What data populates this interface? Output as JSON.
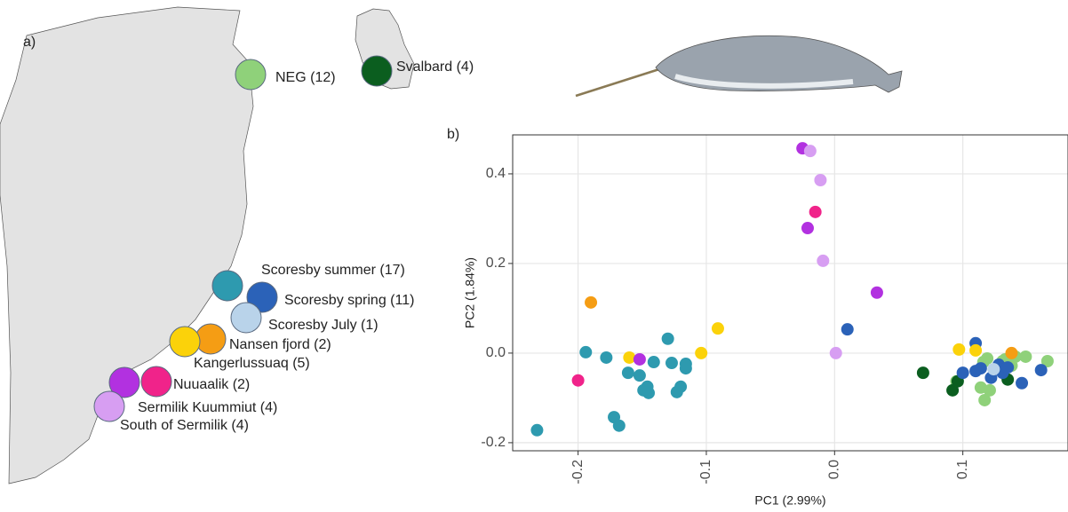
{
  "panels": {
    "a": "a)",
    "b": "b)"
  },
  "chart_data": {
    "type": "scatter",
    "x_label": "PC1 (2.99%)",
    "y_label": "PC2 (1.84%)",
    "xlim": [
      -0.251,
      0.182
    ],
    "ylim": [
      -0.218,
      0.487
    ],
    "xticks": [
      -0.2,
      -0.1,
      {
        "value": 0,
        "label": "0.0"
      },
      0.1
    ],
    "yticks": [
      -0.2,
      {
        "value": 0,
        "label": "0.0"
      },
      0.2,
      0.4
    ],
    "grid": true,
    "series": [
      {
        "name": "NEG (12)",
        "color": "#8fd17a",
        "x": [
          0.095,
          0.116,
          0.114,
          0.117,
          0.119,
          0.121,
          0.131,
          0.138,
          0.141,
          0.149,
          0.166,
          0.133
        ],
        "y": [
          -0.063,
          -0.02,
          -0.077,
          -0.105,
          -0.012,
          -0.083,
          -0.018,
          -0.028,
          -0.008,
          -0.008,
          -0.018,
          -0.014
        ]
      },
      {
        "name": "Svalbard (4)",
        "color": "#0b5e1f",
        "x": [
          0.069,
          0.092,
          0.096,
          0.135
        ],
        "y": [
          -0.044,
          -0.083,
          -0.063,
          -0.059
        ]
      },
      {
        "name": "Scoresby summer (17)",
        "color": "#2e9aaf",
        "x": [
          -0.232,
          -0.194,
          -0.178,
          -0.172,
          -0.168,
          -0.161,
          -0.152,
          -0.149,
          -0.145,
          -0.141,
          -0.13,
          -0.127,
          -0.123,
          -0.12,
          -0.116,
          -0.116,
          -0.146
        ],
        "y": [
          -0.172,
          0.002,
          -0.01,
          -0.143,
          -0.162,
          -0.044,
          -0.05,
          -0.083,
          -0.089,
          -0.02,
          0.032,
          -0.022,
          -0.087,
          -0.075,
          -0.024,
          -0.034,
          -0.075
        ]
      },
      {
        "name": "Scoresby spring (11)",
        "color": "#2b62b8",
        "x": [
          0.01,
          0.1,
          0.11,
          0.11,
          0.114,
          0.122,
          0.128,
          0.131,
          0.135,
          0.146,
          0.161
        ],
        "y": [
          0.053,
          -0.044,
          0.022,
          -0.04,
          -0.034,
          -0.055,
          -0.026,
          -0.044,
          -0.032,
          -0.067,
          -0.038
        ]
      },
      {
        "name": "Scoresby July (1)",
        "color": "#b9d3ea",
        "x": [
          0.124
        ],
        "y": [
          -0.036
        ]
      },
      {
        "name": "Nansen fjord (2)",
        "color": "#f59d14",
        "x": [
          -0.19,
          0.138
        ],
        "y": [
          0.113,
          0.0
        ]
      },
      {
        "name": "Kangerlussuaq (5)",
        "color": "#fbd20a",
        "x": [
          -0.16,
          -0.104,
          -0.091,
          0.097,
          0.11
        ],
        "y": [
          -0.01,
          0.0,
          0.055,
          0.008,
          0.006
        ]
      },
      {
        "name": "Nuuaalik (2)",
        "color": "#f0238a",
        "x": [
          -0.2,
          -0.015
        ],
        "y": [
          -0.061,
          0.315
        ]
      },
      {
        "name": "Sermilik Kuummiut (4)",
        "color": "#b231e0",
        "x": [
          -0.152,
          -0.025,
          -0.021,
          0.033
        ],
        "y": [
          -0.014,
          0.457,
          0.279,
          0.135
        ]
      },
      {
        "name": "South of Sermilik (4)",
        "color": "#d79ef2",
        "x": [
          -0.019,
          -0.011,
          -0.009,
          0.001
        ],
        "y": [
          0.451,
          0.386,
          0.206,
          0.0
        ]
      }
    ]
  }
}
